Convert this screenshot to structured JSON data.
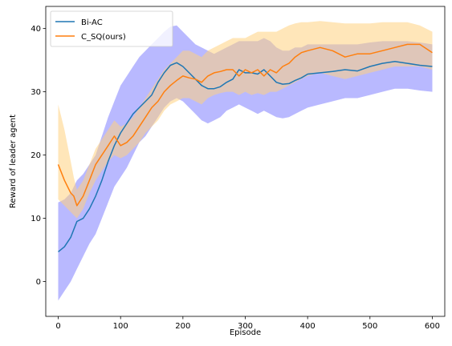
{
  "chart_data": {
    "type": "line",
    "xlabel": "Episode",
    "ylabel": "Reward of leader agent",
    "xlim": [
      -20,
      620
    ],
    "ylim": [
      -5.5,
      43.5
    ],
    "xticks": [
      0,
      100,
      200,
      300,
      400,
      500,
      600
    ],
    "yticks": [
      0,
      10,
      20,
      30,
      40
    ],
    "grid": false,
    "legend_position": "top-left",
    "series": [
      {
        "name": "Bi-AC",
        "color": "#1f77b4",
        "band_color": "#8080ff",
        "x": [
          0,
          10,
          20,
          30,
          40,
          50,
          60,
          70,
          80,
          90,
          100,
          110,
          120,
          130,
          140,
          150,
          160,
          170,
          180,
          190,
          200,
          210,
          220,
          230,
          240,
          250,
          260,
          270,
          280,
          290,
          300,
          310,
          320,
          330,
          340,
          350,
          360,
          370,
          380,
          390,
          400,
          420,
          440,
          460,
          480,
          500,
          520,
          540,
          560,
          580,
          600
        ],
        "y": [
          4.7,
          5.5,
          7.0,
          9.5,
          10.0,
          11.5,
          13.5,
          16.0,
          19.0,
          21.5,
          23.5,
          25.0,
          26.5,
          27.5,
          28.5,
          29.5,
          31.5,
          33.0,
          34.2,
          34.6,
          34.0,
          33.0,
          32.0,
          31.0,
          30.5,
          30.5,
          30.8,
          31.5,
          32.0,
          33.5,
          33.0,
          33.0,
          32.8,
          33.5,
          32.5,
          31.5,
          31.2,
          31.3,
          31.8,
          32.2,
          32.8,
          33.0,
          33.2,
          33.5,
          33.3,
          34.0,
          34.5,
          34.8,
          34.5,
          34.2,
          34.0
        ],
        "lower": [
          -3.0,
          -1.5,
          0.0,
          2.0,
          4.0,
          6.0,
          7.5,
          10.0,
          12.5,
          15.0,
          16.5,
          18.0,
          20.0,
          22.0,
          23.0,
          24.5,
          26.0,
          27.5,
          28.5,
          29.0,
          28.5,
          27.5,
          26.5,
          25.5,
          25.0,
          25.5,
          26.0,
          27.0,
          27.5,
          28.0,
          27.5,
          27.0,
          26.5,
          27.0,
          26.5,
          26.0,
          25.8,
          26.0,
          26.5,
          27.0,
          27.5,
          28.0,
          28.5,
          29.0,
          29.0,
          29.5,
          30.0,
          30.5,
          30.5,
          30.2,
          30.0
        ],
        "upper": [
          12.5,
          13.0,
          14.0,
          16.0,
          17.0,
          18.5,
          20.0,
          23.0,
          26.0,
          28.5,
          31.0,
          32.5,
          34.0,
          35.5,
          36.5,
          37.5,
          38.5,
          39.5,
          40.3,
          40.5,
          39.5,
          38.5,
          37.5,
          37.0,
          36.5,
          36.0,
          36.5,
          37.0,
          37.5,
          38.0,
          38.0,
          38.0,
          38.0,
          38.5,
          38.0,
          37.0,
          36.5,
          36.5,
          37.0,
          37.0,
          37.5,
          37.5,
          37.5,
          37.5,
          37.5,
          37.8,
          38.0,
          38.0,
          38.0,
          37.8,
          37.5
        ]
      },
      {
        "name": "C_SQ(ours)",
        "color": "#ff7f0e",
        "band_color": "#ffd27f",
        "x": [
          0,
          10,
          20,
          25,
          30,
          40,
          50,
          60,
          70,
          80,
          90,
          100,
          110,
          120,
          130,
          140,
          150,
          160,
          170,
          180,
          190,
          200,
          210,
          220,
          230,
          240,
          250,
          260,
          270,
          280,
          290,
          300,
          310,
          320,
          330,
          340,
          350,
          360,
          370,
          380,
          390,
          400,
          420,
          440,
          460,
          480,
          500,
          520,
          540,
          560,
          580,
          600
        ],
        "y": [
          18.5,
          16.0,
          14.0,
          13.5,
          12.0,
          13.5,
          16.0,
          18.5,
          20.0,
          21.5,
          23.0,
          21.5,
          22.0,
          23.0,
          24.5,
          26.0,
          27.5,
          28.5,
          30.0,
          31.0,
          31.8,
          32.5,
          32.2,
          32.0,
          31.5,
          32.5,
          33.0,
          33.2,
          33.5,
          33.5,
          32.5,
          33.5,
          33.0,
          33.5,
          32.5,
          33.5,
          33.0,
          34.0,
          34.5,
          35.5,
          36.2,
          36.5,
          37.0,
          36.5,
          35.5,
          36.0,
          36.0,
          36.5,
          37.0,
          37.5,
          37.5,
          36.2
        ],
        "lower": [
          13.0,
          12.0,
          11.0,
          10.5,
          10.0,
          11.5,
          14.0,
          16.0,
          17.5,
          19.0,
          20.0,
          19.5,
          20.0,
          21.0,
          22.0,
          23.5,
          24.5,
          25.5,
          27.0,
          28.0,
          28.5,
          29.0,
          29.0,
          28.5,
          28.0,
          29.0,
          29.5,
          29.8,
          30.0,
          30.0,
          29.5,
          30.0,
          29.5,
          29.8,
          29.5,
          30.0,
          30.0,
          30.5,
          31.0,
          31.5,
          32.0,
          32.5,
          33.0,
          32.5,
          32.0,
          32.5,
          33.0,
          33.5,
          34.0,
          34.0,
          34.0,
          33.5
        ],
        "upper": [
          28.0,
          24.0,
          19.0,
          16.5,
          14.5,
          16.0,
          18.5,
          21.0,
          22.5,
          24.0,
          25.5,
          24.5,
          25.0,
          26.0,
          27.5,
          29.0,
          30.5,
          32.0,
          33.5,
          34.5,
          35.5,
          36.5,
          36.5,
          36.0,
          35.5,
          36.5,
          37.0,
          37.5,
          38.0,
          38.5,
          38.5,
          38.5,
          39.0,
          39.5,
          39.5,
          39.5,
          39.5,
          40.0,
          40.5,
          40.8,
          41.0,
          41.0,
          41.2,
          41.0,
          40.8,
          40.8,
          40.8,
          41.0,
          41.0,
          41.0,
          40.5,
          39.5
        ]
      }
    ]
  }
}
